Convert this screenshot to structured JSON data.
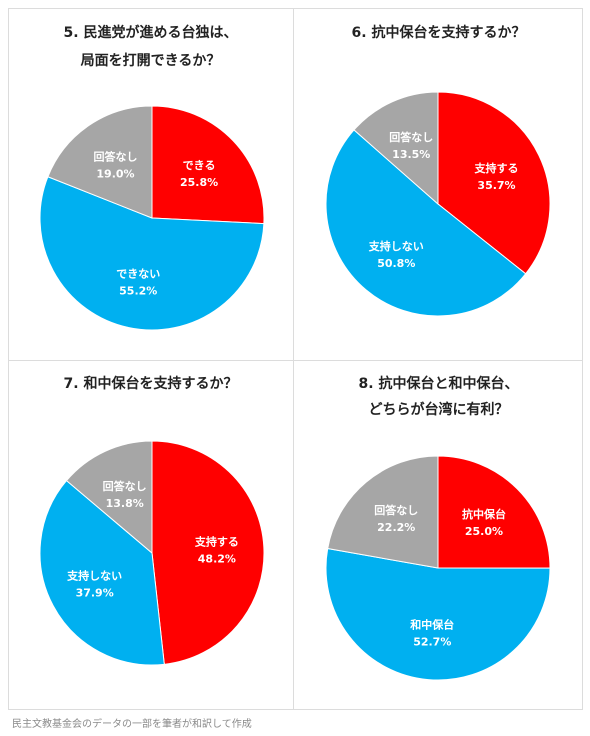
{
  "colors": {
    "red": "#ff0000",
    "blue": "#00b0f0",
    "gray": "#a6a6a6"
  },
  "caption": "民主文教基金会のデータの一部を筆者が和訳して作成",
  "chart_data": [
    {
      "type": "pie",
      "title_lines": [
        "5. 民進党が進める台独は、",
        "局面を打開できるか？"
      ],
      "slices": [
        {
          "label": "できる",
          "value": 25.8,
          "value_text": "25.8%",
          "color": "#ff0000"
        },
        {
          "label": "できない",
          "value": 55.2,
          "value_text": "55.2%",
          "color": "#00b0f0"
        },
        {
          "label": "回答なし",
          "value": 19.0,
          "value_text": "19.0%",
          "color": "#a6a6a6"
        }
      ]
    },
    {
      "type": "pie",
      "title_lines": [
        "6. 抗中保台を支持するか？"
      ],
      "slices": [
        {
          "label": "支持する",
          "value": 35.7,
          "value_text": "35.7%",
          "color": "#ff0000"
        },
        {
          "label": "支持しない",
          "value": 50.8,
          "value_text": "50.8%",
          "color": "#00b0f0"
        },
        {
          "label": "回答なし",
          "value": 13.5,
          "value_text": "13.5%",
          "color": "#a6a6a6"
        }
      ]
    },
    {
      "type": "pie",
      "title_lines": [
        "7. 和中保台を支持するか？"
      ],
      "slices": [
        {
          "label": "支持する",
          "value": 48.2,
          "value_text": "48.2%",
          "color": "#ff0000"
        },
        {
          "label": "支持しない",
          "value": 37.9,
          "value_text": "37.9%",
          "color": "#00b0f0"
        },
        {
          "label": "回答なし",
          "value": 13.8,
          "value_text": "13.8%",
          "color": "#a6a6a6"
        }
      ]
    },
    {
      "type": "pie",
      "title_lines": [
        "8. 抗中保台と和中保台、",
        "どちらが台湾に有利？"
      ],
      "slices": [
        {
          "label": "抗中保台",
          "value": 25.0,
          "value_text": "25.0%",
          "color": "#ff0000"
        },
        {
          "label": "和中保台",
          "value": 52.7,
          "value_text": "52.7%",
          "color": "#00b0f0"
        },
        {
          "label": "回答なし",
          "value": 22.2,
          "value_text": "22.2%",
          "color": "#a6a6a6"
        }
      ]
    }
  ]
}
